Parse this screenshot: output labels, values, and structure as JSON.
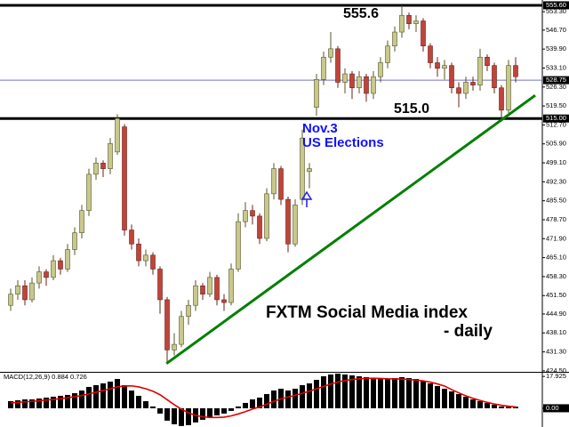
{
  "chart_data": [
    {
      "type": "candlestick",
      "annotations": [
        "555.6",
        "515.0",
        "Nov.3",
        "US Elections"
      ],
      "title": "FXTM Social Media index",
      "subtitle": "- daily",
      "up_color": "#c8c88c",
      "down_color": "#c0443a",
      "trend_color": "#008000",
      "ylim": [
        424.3,
        557.5
      ],
      "yticks": [
        {
          "value": 553.3,
          "label": "553.30"
        },
        {
          "value": 546.7,
          "label": "546.70"
        },
        {
          "value": 539.9,
          "label": "539.90"
        },
        {
          "value": 533.1,
          "label": "533.10"
        },
        {
          "value": 526.3,
          "label": "526.30"
        },
        {
          "value": 519.5,
          "label": "519.50"
        },
        {
          "value": 512.7,
          "label": "512.70"
        },
        {
          "value": 505.9,
          "label": "505.90"
        },
        {
          "value": 499.1,
          "label": "499.10"
        },
        {
          "value": 492.3,
          "label": "492.30"
        },
        {
          "value": 485.5,
          "label": "485.50"
        },
        {
          "value": 478.7,
          "label": "478.70"
        },
        {
          "value": 471.9,
          "label": "471.90"
        },
        {
          "value": 465.1,
          "label": "465.10"
        },
        {
          "value": 458.3,
          "label": "458.30"
        },
        {
          "value": 451.5,
          "label": "451.50"
        },
        {
          "value": 444.9,
          "label": "444.90"
        },
        {
          "value": 438.1,
          "label": "438.10"
        },
        {
          "value": 431.3,
          "label": "431.30"
        },
        {
          "value": 424.5,
          "label": "424.50"
        }
      ],
      "levels": [
        {
          "value": 555.6,
          "label": "555.60",
          "color": "#000000"
        },
        {
          "value": 528.75,
          "label": "528.75",
          "color": "#7070c8"
        },
        {
          "value": 515,
          "label": "515.00",
          "color": "#000000"
        }
      ],
      "trendline": {
        "x": [
          21.9,
          73.75
        ],
        "values": [
          427.1,
          523.3
        ]
      },
      "open": [
        448,
        452,
        455,
        450,
        456,
        460,
        458,
        464,
        461,
        468,
        474,
        482,
        495,
        499,
        497,
        503,
        512,
        475,
        470,
        464,
        466,
        461,
        450,
        432,
        434,
        444,
        448,
        455,
        452,
        458,
        450,
        449,
        461,
        478,
        482,
        480,
        472,
        488,
        497,
        486,
        470,
        486,
        496,
        519,
        529,
        537,
        540,
        528,
        531,
        526,
        530,
        524,
        530,
        535,
        541,
        546,
        552,
        549,
        550,
        541,
        535,
        533,
        534,
        526,
        524,
        528,
        527,
        537,
        534,
        526,
        518,
        534
      ],
      "high": [
        454,
        457,
        457,
        458,
        462,
        461,
        466,
        465,
        470,
        476,
        484,
        497,
        501,
        500,
        508,
        516.5,
        513,
        477,
        472,
        468,
        467,
        462,
        451,
        438,
        446,
        450,
        457,
        456,
        460,
        459,
        452,
        463,
        481,
        485,
        484,
        481,
        490,
        499,
        498,
        487,
        486,
        511,
        499,
        531,
        539,
        546,
        541,
        533,
        532,
        532,
        531,
        532,
        537,
        543,
        548,
        555.6,
        553,
        552,
        551,
        542,
        537,
        536,
        535,
        528,
        530,
        530,
        540,
        538,
        535,
        527,
        536,
        537
      ],
      "low": [
        446,
        450,
        448,
        449,
        454,
        455,
        457,
        459,
        460,
        466,
        472,
        480,
        493,
        494,
        495,
        502,
        473,
        468,
        462,
        462,
        459,
        445,
        427,
        430,
        433,
        441,
        446,
        450,
        451,
        448,
        446,
        448,
        460,
        476,
        477,
        470,
        471,
        486,
        484,
        467,
        469,
        484,
        490,
        516,
        527,
        535,
        526,
        524,
        522,
        524,
        521,
        522,
        528,
        533,
        539,
        544,
        547,
        546,
        539,
        533,
        530,
        529,
        524,
        519,
        522,
        525,
        525,
        532,
        524,
        515,
        517,
        528
      ],
      "close": [
        452,
        455,
        450,
        456,
        460,
        458,
        464,
        461,
        468,
        474,
        482,
        495,
        499,
        497,
        506,
        515,
        475,
        470,
        464,
        466,
        461,
        450,
        432,
        434,
        444,
        448,
        455,
        452,
        458,
        450,
        449,
        461,
        478,
        482,
        480,
        472,
        488,
        497,
        486,
        470,
        484,
        508,
        497,
        529,
        537,
        540,
        528,
        531,
        526,
        530,
        524,
        530,
        535,
        541,
        546,
        552,
        549,
        550,
        541,
        535,
        533,
        534,
        526,
        524,
        528,
        527,
        537,
        534,
        526,
        518,
        534,
        530
      ]
    },
    {
      "type": "macd",
      "title": "MACD(12,26,9) 0.884 0.726",
      "hist_color": "#000000",
      "signal_color": "#e00000",
      "ylim": [
        -10.56,
        20
      ],
      "yticks": [
        17.925,
        {
          "value": 0,
          "label": "0.00"
        }
      ],
      "histogram": [
        4,
        4.5,
        5,
        5,
        5.5,
        6,
        6.5,
        7,
        7.5,
        8.5,
        10,
        12,
        13,
        14,
        15,
        16.5,
        13,
        10,
        7,
        4,
        1,
        -3,
        -7,
        -9,
        -10,
        -9.5,
        -8,
        -6.5,
        -5,
        -4,
        -3,
        -1.5,
        1,
        3,
        5,
        6,
        8,
        10,
        11,
        10,
        11,
        13,
        14,
        16,
        18,
        19,
        19.5,
        19,
        18.5,
        18,
        17.5,
        17,
        16.5,
        16.5,
        17,
        17.5,
        17,
        16.5,
        15.5,
        14,
        12.5,
        11,
        9.5,
        8,
        6.5,
        5,
        4,
        3,
        2,
        1,
        0.8,
        0.884
      ],
      "signal": [
        3,
        3.3,
        3.6,
        3.9,
        4.2,
        4.6,
        5,
        5.4,
        5.9,
        6.5,
        7.2,
        8.1,
        9,
        10,
        11,
        12,
        12.5,
        12.6,
        12,
        11,
        9.6,
        7.6,
        4.8,
        2,
        -0.5,
        -2.6,
        -4,
        -4.8,
        -5.2,
        -5.2,
        -5,
        -4.3,
        -3.2,
        -1.9,
        -0.5,
        0.8,
        2.3,
        3.9,
        5.3,
        6.3,
        7.3,
        8.4,
        9.6,
        10.9,
        12.3,
        13.6,
        14.8,
        15.6,
        16.2,
        16.6,
        16.8,
        16.9,
        16.8,
        16.6,
        16.5,
        16.4,
        16.2,
        15.9,
        15.4,
        14.7,
        13.7,
        12.5,
        10.5,
        8.7,
        7,
        5.6,
        4.4,
        3.3,
        2.4,
        1.7,
        1.1,
        0.726
      ]
    }
  ]
}
